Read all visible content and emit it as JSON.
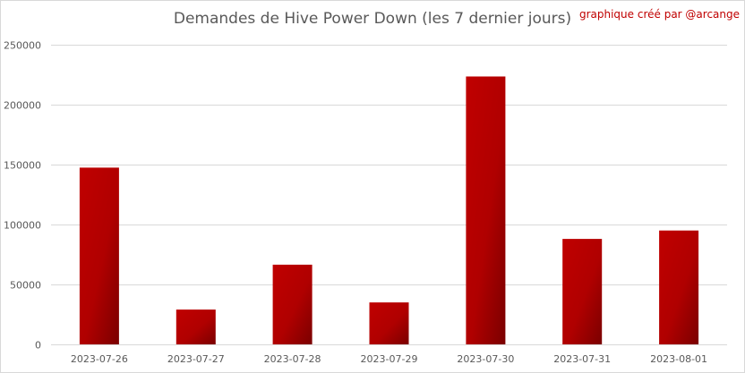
{
  "chart_data": {
    "type": "bar",
    "title": "Demandes de Hive Power Down (les 7 dernier jours)",
    "annotation": "graphique créé par @arcange",
    "categories": [
      "2023-07-26",
      "2023-07-27",
      "2023-07-28",
      "2023-07-29",
      "2023-07-30",
      "2023-07-31",
      "2023-08-01"
    ],
    "values": [
      147500,
      29000,
      66500,
      35000,
      223500,
      88000,
      95000
    ],
    "ylim": [
      0,
      250000
    ],
    "yticks": [
      0,
      50000,
      100000,
      150000,
      200000,
      250000
    ],
    "ytick_labels": [
      "0",
      "50000",
      "100000",
      "150000",
      "200000",
      "250000"
    ],
    "grid": true,
    "legend": "none",
    "colors": {
      "bar_top": "#c00000",
      "bar_bottom": "#7a0000",
      "grid": "#d9d9d9",
      "text": "#595959",
      "annotation": "#c00000"
    }
  }
}
